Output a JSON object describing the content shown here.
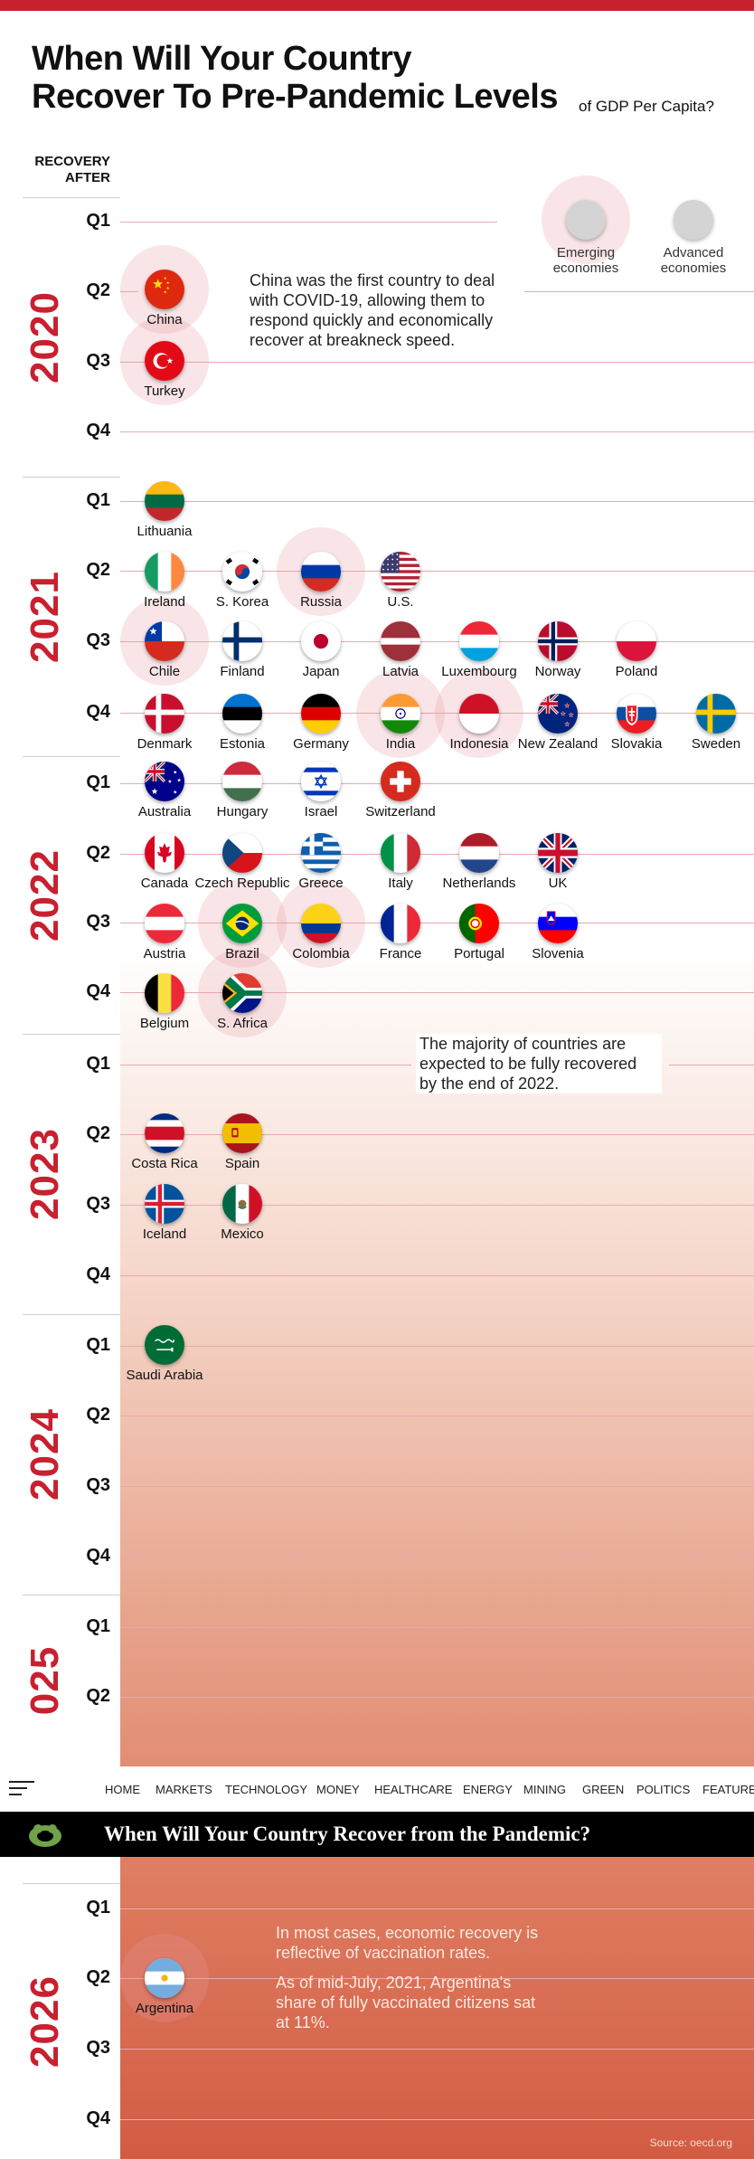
{
  "title": {
    "line1": "When Will Your Country",
    "line2": "Recover To Pre-Pandemic Levels",
    "subtitle": "of GDP Per Capita?"
  },
  "recovery_label": "RECOVERY AFTER",
  "legend": {
    "emerging": "Emerging economies",
    "advanced": "Advanced economies"
  },
  "years": [
    "2020",
    "2021",
    "2022",
    "2023",
    "2024",
    "025",
    "2026"
  ],
  "quarter_labels": [
    "Q1",
    "Q2",
    "Q3",
    "Q4"
  ],
  "countries": [
    {
      "name": "China",
      "flag": "china-flag",
      "emerging": true
    },
    {
      "name": "Turkey",
      "flag": "turkey-flag",
      "emerging": true
    },
    {
      "name": "Lithuania",
      "flag": "lithuania-flag",
      "emerging": false
    },
    {
      "name": "Ireland",
      "flag": "ireland-flag",
      "emerging": false
    },
    {
      "name": "S. Korea",
      "flag": "south-korea-flag",
      "emerging": false
    },
    {
      "name": "Russia",
      "flag": "russia-flag",
      "emerging": true
    },
    {
      "name": "U.S.",
      "flag": "us-flag",
      "emerging": false
    },
    {
      "name": "Chile",
      "flag": "chile-flag",
      "emerging": true
    },
    {
      "name": "Finland",
      "flag": "finland-flag",
      "emerging": false
    },
    {
      "name": "Japan",
      "flag": "japan-flag",
      "emerging": false
    },
    {
      "name": "Latvia",
      "flag": "latvia-flag",
      "emerging": false
    },
    {
      "name": "Luxembourg",
      "flag": "luxembourg-flag",
      "emerging": false
    },
    {
      "name": "Norway",
      "flag": "norway-flag",
      "emerging": false
    },
    {
      "name": "Poland",
      "flag": "poland-flag",
      "emerging": false
    },
    {
      "name": "Denmark",
      "flag": "denmark-flag",
      "emerging": false
    },
    {
      "name": "Estonia",
      "flag": "estonia-flag",
      "emerging": false
    },
    {
      "name": "Germany",
      "flag": "germany-flag",
      "emerging": false
    },
    {
      "name": "India",
      "flag": "india-flag",
      "emerging": true
    },
    {
      "name": "Indonesia",
      "flag": "indonesia-flag",
      "emerging": true
    },
    {
      "name": "New Zealand",
      "flag": "new-zealand-flag",
      "emerging": false
    },
    {
      "name": "Slovakia",
      "flag": "slovakia-flag",
      "emerging": false
    },
    {
      "name": "Sweden",
      "flag": "sweden-flag",
      "emerging": false
    },
    {
      "name": "Australia",
      "flag": "australia-flag",
      "emerging": false
    },
    {
      "name": "Hungary",
      "flag": "hungary-flag",
      "emerging": false
    },
    {
      "name": "Israel",
      "flag": "israel-flag",
      "emerging": false
    },
    {
      "name": "Switzerland",
      "flag": "switzerland-flag",
      "emerging": false
    },
    {
      "name": "Canada",
      "flag": "canada-flag",
      "emerging": false
    },
    {
      "name": "Czech Republic",
      "flag": "czech-republic-flag",
      "emerging": false
    },
    {
      "name": "Greece",
      "flag": "greece-flag",
      "emerging": false
    },
    {
      "name": "Italy",
      "flag": "italy-flag",
      "emerging": false
    },
    {
      "name": "Netherlands",
      "flag": "netherlands-flag",
      "emerging": false
    },
    {
      "name": "UK",
      "flag": "uk-flag",
      "emerging": false
    },
    {
      "name": "Austria",
      "flag": "austria-flag",
      "emerging": false
    },
    {
      "name": "Brazil",
      "flag": "brazil-flag",
      "emerging": true
    },
    {
      "name": "Colombia",
      "flag": "colombia-flag",
      "emerging": true
    },
    {
      "name": "France",
      "flag": "france-flag",
      "emerging": false
    },
    {
      "name": "Portugal",
      "flag": "portugal-flag",
      "emerging": false
    },
    {
      "name": "Slovenia",
      "flag": "slovenia-flag",
      "emerging": false
    },
    {
      "name": "Belgium",
      "flag": "belgium-flag",
      "emerging": false
    },
    {
      "name": "S. Africa",
      "flag": "south-africa-flag",
      "emerging": true
    },
    {
      "name": "Costa Rica",
      "flag": "costa-rica-flag",
      "emerging": false
    },
    {
      "name": "Spain",
      "flag": "spain-flag",
      "emerging": false
    },
    {
      "name": "Iceland",
      "flag": "iceland-flag",
      "emerging": false
    },
    {
      "name": "Mexico",
      "flag": "mexico-flag",
      "emerging": false
    },
    {
      "name": "Saudi Arabia",
      "flag": "saudi-arabia-flag",
      "emerging": false
    },
    {
      "name": "Argentina",
      "flag": "argentina-flag",
      "emerging": true
    }
  ],
  "annotations": {
    "china": "China was the first country to deal with COVID-19, allowing them to respond quickly and economically recover at breakneck speed.",
    "majority": "The majority of countries are expected to be fully recovered by the end of 2022.",
    "vaccination1": "In most cases, economic recovery is reflective of vaccination rates.",
    "vaccination2": "As of mid-July, 2021, Argentina's share of fully vaccinated citizens sat at 11%."
  },
  "nav": {
    "items": [
      "HOME",
      "MARKETS",
      "TECHNOLOGY",
      "MONEY",
      "HEALTHCARE",
      "ENERGY",
      "MINING",
      "GREEN",
      "POLITICS",
      "FEATURE"
    ]
  },
  "banner": {
    "title": "When Will Your Country Recover from the Pandemic?"
  },
  "source": "Source: oecd.org"
}
